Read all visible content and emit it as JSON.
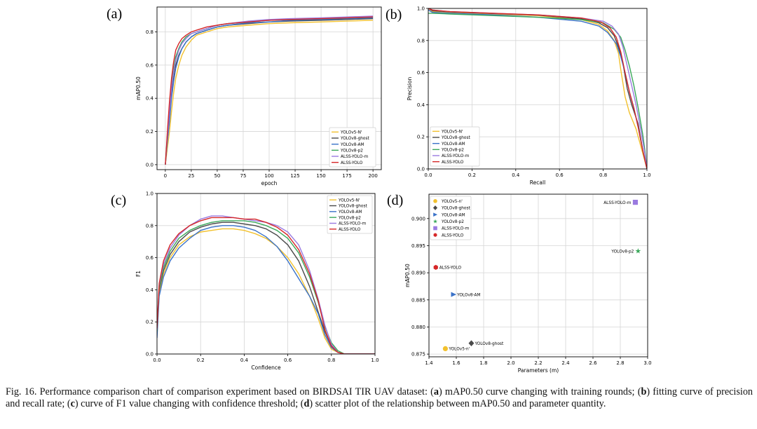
{
  "colors": {
    "yolov5": "#f2c12e",
    "ghost": "#4a4a4a",
    "am": "#3a72c8",
    "p2": "#3aa85a",
    "m": "#9a7ae0",
    "alss": "#d62728"
  },
  "chart_data": [
    {
      "panel_label": "(a)",
      "type": "line",
      "title": "",
      "xlabel": "epoch",
      "ylabel": "mAP0.50",
      "xlim": [
        -8,
        208
      ],
      "ylim": [
        -0.03,
        0.95
      ],
      "xticks": [
        "0",
        "25",
        "50",
        "75",
        "100",
        "125",
        "150",
        "175",
        "200"
      ],
      "yticks": [
        "0.0",
        "0.2",
        "0.4",
        "0.6",
        "0.8"
      ],
      "grid": true,
      "legend_position": "bottom-right",
      "legend": [
        "YOLOv5-N'",
        "YOLOv8-ghost",
        "YOLOv8-AM",
        "YOLOv8-p2",
        "ALSS-YOLO-m",
        "ALSS-YOLO"
      ],
      "series": [
        {
          "name": "YOLOv5-N'",
          "x": [
            0,
            2,
            4,
            6,
            8,
            10,
            13,
            16,
            20,
            25,
            30,
            40,
            50,
            60,
            80,
            100,
            120,
            150,
            175,
            200
          ],
          "y": [
            0.0,
            0.1,
            0.2,
            0.32,
            0.43,
            0.52,
            0.6,
            0.66,
            0.71,
            0.75,
            0.78,
            0.8,
            0.82,
            0.83,
            0.84,
            0.85,
            0.855,
            0.86,
            0.865,
            0.87
          ]
        },
        {
          "name": "YOLOv8-ghost",
          "x": [
            0,
            2,
            4,
            6,
            8,
            10,
            13,
            16,
            20,
            25,
            30,
            40,
            50,
            60,
            80,
            100,
            120,
            150,
            175,
            200
          ],
          "y": [
            0.0,
            0.15,
            0.28,
            0.42,
            0.52,
            0.6,
            0.66,
            0.7,
            0.74,
            0.77,
            0.79,
            0.81,
            0.83,
            0.84,
            0.85,
            0.86,
            0.865,
            0.87,
            0.875,
            0.88
          ]
        },
        {
          "name": "YOLOv8-AM",
          "x": [
            0,
            2,
            4,
            6,
            8,
            10,
            13,
            16,
            20,
            25,
            30,
            40,
            50,
            60,
            80,
            100,
            120,
            150,
            175,
            200
          ],
          "y": [
            0.0,
            0.14,
            0.26,
            0.4,
            0.5,
            0.58,
            0.65,
            0.7,
            0.74,
            0.77,
            0.79,
            0.81,
            0.83,
            0.84,
            0.855,
            0.86,
            0.87,
            0.875,
            0.88,
            0.885
          ]
        },
        {
          "name": "YOLOv8-p2",
          "x": [
            0,
            2,
            4,
            6,
            8,
            10,
            13,
            16,
            20,
            25,
            30,
            40,
            50,
            60,
            80,
            100,
            120,
            150,
            175,
            200
          ],
          "y": [
            0.0,
            0.18,
            0.34,
            0.48,
            0.58,
            0.65,
            0.7,
            0.74,
            0.77,
            0.79,
            0.8,
            0.82,
            0.84,
            0.85,
            0.86,
            0.87,
            0.875,
            0.88,
            0.885,
            0.89
          ]
        },
        {
          "name": "ALSS-YOLO-m",
          "x": [
            0,
            2,
            4,
            6,
            8,
            10,
            13,
            16,
            20,
            25,
            30,
            40,
            50,
            60,
            80,
            100,
            120,
            150,
            175,
            200
          ],
          "y": [
            0.0,
            0.17,
            0.32,
            0.46,
            0.56,
            0.63,
            0.69,
            0.73,
            0.76,
            0.79,
            0.8,
            0.82,
            0.84,
            0.85,
            0.865,
            0.875,
            0.88,
            0.885,
            0.89,
            0.895
          ]
        },
        {
          "name": "ALSS-YOLO",
          "x": [
            0,
            2,
            4,
            6,
            8,
            10,
            13,
            16,
            20,
            25,
            30,
            40,
            50,
            60,
            80,
            100,
            120,
            150,
            175,
            200
          ],
          "y": [
            0.0,
            0.2,
            0.38,
            0.52,
            0.62,
            0.69,
            0.73,
            0.76,
            0.78,
            0.8,
            0.81,
            0.83,
            0.84,
            0.85,
            0.86,
            0.87,
            0.875,
            0.88,
            0.885,
            0.89
          ]
        }
      ]
    },
    {
      "panel_label": "(b)",
      "type": "line",
      "title": "",
      "xlabel": "Recall",
      "ylabel": "Precision",
      "xlim": [
        0,
        1
      ],
      "ylim": [
        0,
        1
      ],
      "xticks": [
        "0.0",
        "0.2",
        "0.4",
        "0.6",
        "0.8",
        "1.0"
      ],
      "yticks": [
        "0.0",
        "0.2",
        "0.4",
        "0.6",
        "0.8",
        "1.0"
      ],
      "grid": true,
      "legend_position": "bottom-left",
      "legend": [
        "YOLOv5-N'",
        "YOLOv8-ghost",
        "YOLOv8-AM",
        "YOLOv8-p2",
        "ALSS-YOLO-m",
        "ALSS-YOLO"
      ],
      "series": [
        {
          "name": "YOLOv5-N'",
          "x": [
            0,
            0.02,
            0.1,
            0.3,
            0.5,
            0.7,
            0.78,
            0.82,
            0.85,
            0.87,
            0.88,
            0.9,
            0.92,
            0.95,
            0.98,
            1.0
          ],
          "y": [
            1.0,
            0.98,
            0.975,
            0.965,
            0.955,
            0.93,
            0.9,
            0.86,
            0.8,
            0.72,
            0.62,
            0.45,
            0.35,
            0.25,
            0.1,
            0.0
          ]
        },
        {
          "name": "YOLOv8-ghost",
          "x": [
            0,
            0.02,
            0.1,
            0.3,
            0.5,
            0.7,
            0.78,
            0.82,
            0.85,
            0.87,
            0.89,
            0.91,
            0.93,
            0.96,
            0.98,
            1.0
          ],
          "y": [
            1.0,
            0.985,
            0.978,
            0.968,
            0.958,
            0.935,
            0.91,
            0.88,
            0.83,
            0.76,
            0.66,
            0.5,
            0.4,
            0.28,
            0.12,
            0.0
          ]
        },
        {
          "name": "YOLOv8-AM",
          "x": [
            0,
            0.02,
            0.1,
            0.3,
            0.5,
            0.7,
            0.78,
            0.82,
            0.86,
            0.88,
            0.9,
            0.92,
            0.94,
            0.96,
            0.98,
            1.0
          ],
          "y": [
            0.99,
            0.975,
            0.97,
            0.96,
            0.945,
            0.92,
            0.89,
            0.85,
            0.78,
            0.7,
            0.6,
            0.48,
            0.38,
            0.26,
            0.12,
            0.0
          ]
        },
        {
          "name": "YOLOv8-p2",
          "x": [
            0,
            0.02,
            0.1,
            0.3,
            0.5,
            0.7,
            0.8,
            0.85,
            0.88,
            0.9,
            0.92,
            0.94,
            0.96,
            0.98,
            0.99,
            1.0
          ],
          "y": [
            0.97,
            0.97,
            0.965,
            0.955,
            0.945,
            0.93,
            0.91,
            0.87,
            0.82,
            0.74,
            0.64,
            0.52,
            0.38,
            0.22,
            0.12,
            0.0
          ]
        },
        {
          "name": "ALSS-YOLO-m",
          "x": [
            0,
            0.02,
            0.1,
            0.3,
            0.5,
            0.7,
            0.8,
            0.84,
            0.87,
            0.89,
            0.91,
            0.93,
            0.95,
            0.97,
            0.99,
            1.0
          ],
          "y": [
            1.0,
            0.99,
            0.98,
            0.97,
            0.96,
            0.94,
            0.92,
            0.89,
            0.84,
            0.76,
            0.64,
            0.52,
            0.4,
            0.26,
            0.1,
            0.0
          ]
        },
        {
          "name": "ALSS-YOLO",
          "x": [
            0,
            0.02,
            0.1,
            0.3,
            0.5,
            0.7,
            0.79,
            0.83,
            0.86,
            0.88,
            0.9,
            0.92,
            0.94,
            0.96,
            0.98,
            1.0
          ],
          "y": [
            1.0,
            0.99,
            0.98,
            0.97,
            0.96,
            0.94,
            0.915,
            0.88,
            0.82,
            0.73,
            0.6,
            0.48,
            0.38,
            0.26,
            0.12,
            0.0
          ]
        }
      ]
    },
    {
      "panel_label": "(c)",
      "type": "line",
      "title": "",
      "xlabel": "Confidence",
      "ylabel": "F1",
      "xlim": [
        0,
        1
      ],
      "ylim": [
        0,
        1
      ],
      "xticks": [
        "0.0",
        "0.2",
        "0.4",
        "0.6",
        "0.8",
        "1.0"
      ],
      "yticks": [
        "0.0",
        "0.2",
        "0.4",
        "0.6",
        "0.8",
        "1.0"
      ],
      "grid": true,
      "legend_position": "top-right",
      "legend": [
        "YOLOv5-N'",
        "YOLOv8-ghost",
        "YOLOv8-AM",
        "YOLOv8-p2",
        "ALSS-YOLO-m",
        "ALSS-YOLO"
      ],
      "series": [
        {
          "name": "YOLOv5-N'",
          "x": [
            0,
            0.01,
            0.03,
            0.06,
            0.1,
            0.15,
            0.2,
            0.25,
            0.3,
            0.35,
            0.4,
            0.45,
            0.5,
            0.55,
            0.6,
            0.65,
            0.7,
            0.74,
            0.77,
            0.8,
            0.83,
            0.86,
            0.9,
            1.0
          ],
          "y": [
            0.12,
            0.38,
            0.5,
            0.6,
            0.68,
            0.73,
            0.76,
            0.77,
            0.78,
            0.78,
            0.77,
            0.75,
            0.72,
            0.67,
            0.6,
            0.5,
            0.36,
            0.22,
            0.1,
            0.03,
            0.01,
            0.0,
            0.0,
            0.0
          ]
        },
        {
          "name": "YOLOv8-ghost",
          "x": [
            0,
            0.01,
            0.03,
            0.06,
            0.1,
            0.15,
            0.2,
            0.25,
            0.3,
            0.35,
            0.4,
            0.45,
            0.5,
            0.55,
            0.6,
            0.65,
            0.7,
            0.74,
            0.77,
            0.8,
            0.83,
            0.86,
            0.9,
            1.0
          ],
          "y": [
            0.13,
            0.4,
            0.52,
            0.62,
            0.7,
            0.76,
            0.79,
            0.81,
            0.82,
            0.82,
            0.81,
            0.8,
            0.78,
            0.74,
            0.68,
            0.58,
            0.42,
            0.26,
            0.14,
            0.05,
            0.01,
            0.0,
            0.0,
            0.0
          ]
        },
        {
          "name": "YOLOv8-AM",
          "x": [
            0,
            0.01,
            0.03,
            0.06,
            0.1,
            0.15,
            0.2,
            0.25,
            0.3,
            0.35,
            0.4,
            0.45,
            0.5,
            0.55,
            0.6,
            0.65,
            0.7,
            0.74,
            0.77,
            0.8,
            0.83,
            0.86,
            0.9,
            1.0
          ],
          "y": [
            0.1,
            0.36,
            0.48,
            0.58,
            0.66,
            0.72,
            0.77,
            0.79,
            0.8,
            0.8,
            0.79,
            0.77,
            0.73,
            0.67,
            0.58,
            0.47,
            0.36,
            0.25,
            0.12,
            0.04,
            0.01,
            0.0,
            0.0,
            0.0
          ]
        },
        {
          "name": "YOLOv8-p2",
          "x": [
            0,
            0.01,
            0.03,
            0.06,
            0.1,
            0.15,
            0.2,
            0.25,
            0.3,
            0.35,
            0.4,
            0.45,
            0.5,
            0.55,
            0.6,
            0.65,
            0.7,
            0.74,
            0.77,
            0.8,
            0.83,
            0.86,
            0.9,
            1.0
          ],
          "y": [
            0.14,
            0.41,
            0.54,
            0.64,
            0.72,
            0.77,
            0.8,
            0.82,
            0.83,
            0.83,
            0.83,
            0.82,
            0.8,
            0.77,
            0.72,
            0.63,
            0.48,
            0.32,
            0.17,
            0.07,
            0.02,
            0.0,
            0.0,
            0.0
          ]
        },
        {
          "name": "ALSS-YOLO-m",
          "x": [
            0,
            0.01,
            0.03,
            0.06,
            0.1,
            0.15,
            0.2,
            0.25,
            0.3,
            0.35,
            0.4,
            0.45,
            0.5,
            0.55,
            0.6,
            0.65,
            0.7,
            0.74,
            0.77,
            0.8,
            0.83,
            0.86,
            0.9,
            1.0
          ],
          "y": [
            0.15,
            0.43,
            0.56,
            0.66,
            0.74,
            0.8,
            0.84,
            0.86,
            0.86,
            0.85,
            0.84,
            0.83,
            0.82,
            0.8,
            0.76,
            0.68,
            0.52,
            0.34,
            0.18,
            0.06,
            0.01,
            0.0,
            0.0,
            0.0
          ]
        },
        {
          "name": "ALSS-YOLO",
          "x": [
            0,
            0.01,
            0.03,
            0.06,
            0.1,
            0.15,
            0.2,
            0.25,
            0.3,
            0.35,
            0.4,
            0.45,
            0.5,
            0.55,
            0.6,
            0.65,
            0.7,
            0.74,
            0.77,
            0.8,
            0.83,
            0.86,
            0.9,
            1.0
          ],
          "y": [
            0.16,
            0.44,
            0.58,
            0.68,
            0.75,
            0.8,
            0.83,
            0.85,
            0.85,
            0.85,
            0.84,
            0.84,
            0.82,
            0.79,
            0.74,
            0.65,
            0.5,
            0.33,
            0.15,
            0.05,
            0.01,
            0.0,
            0.0,
            0.0
          ]
        }
      ]
    },
    {
      "panel_label": "(d)",
      "type": "scatter",
      "title": "",
      "xlabel": "Parameters (m)",
      "ylabel": "mAP0.50",
      "xlim": [
        1.4,
        3.0
      ],
      "ylim": [
        0.8745,
        0.9045
      ],
      "xticks": [
        "1.4",
        "1.6",
        "1.8",
        "2.0",
        "2.2",
        "2.4",
        "2.6",
        "2.8",
        "3.0"
      ],
      "yticks": [
        "0.875",
        "0.880",
        "0.885",
        "0.890",
        "0.895",
        "0.900"
      ],
      "grid": true,
      "legend_position": "top-left",
      "legend": [
        "YOLOv5-n'",
        "YOLOv8-ghost",
        "YOLOv8-AM",
        "YOLOv8-p2",
        "ALSS-YOLO-m",
        "ALSS-YOLO"
      ],
      "points": [
        {
          "name": "YOLOv5-n'",
          "label": "YOLOv5-n'",
          "x": 1.52,
          "y": 0.876,
          "marker": "circle",
          "color_key": "yolov5"
        },
        {
          "name": "YOLOv8-ghost",
          "label": "YOLOv8-ghost",
          "x": 1.71,
          "y": 0.877,
          "marker": "diamond",
          "color_key": "ghost"
        },
        {
          "name": "YOLOv8-AM",
          "label": "YOLOv8-AM",
          "x": 1.58,
          "y": 0.886,
          "marker": "triangle-right",
          "color_key": "am"
        },
        {
          "name": "YOLOv8-p2",
          "label": "YOLOv8-p2",
          "x": 2.93,
          "y": 0.894,
          "marker": "star",
          "color_key": "p2"
        },
        {
          "name": "ALSS-YOLO-m",
          "label": "ALSS-YOLO-m",
          "x": 2.91,
          "y": 0.903,
          "marker": "square",
          "color_key": "m"
        },
        {
          "name": "ALSS-YOLO",
          "label": "ALSS-YOLO",
          "x": 1.45,
          "y": 0.891,
          "marker": "hexagon",
          "color_key": "alss"
        }
      ]
    }
  ],
  "caption": {
    "lead": "Fig. 16.  Performance comparison chart of comparison experiment based on BIRDSAI TIR UAV dataset: (",
    "a_key": "a",
    "a_text": ") mAP0.50 curve changing with training rounds; (",
    "b_key": "b",
    "b_text": ") fitting curve of precision and recall rate; (",
    "c_key": "c",
    "c_text": ") curve of F1 value changing with confidence threshold; (",
    "d_key": "d",
    "d_text": ") scatter plot of the relationship between mAP0.50 and parameter quantity."
  }
}
